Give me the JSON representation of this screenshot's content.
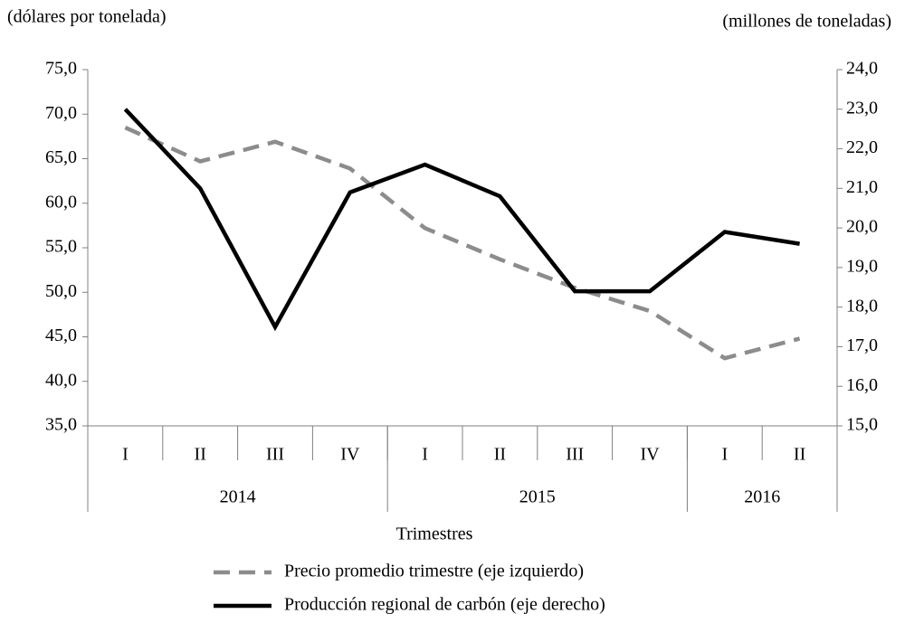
{
  "chart_data": {
    "type": "line",
    "y_axis_label": "(dólares por tonelada)",
    "y2_axis_label": "(millones  de toneladas)",
    "x_axis_label": "Trimestres",
    "categories": [
      "I",
      "II",
      "III",
      "IV",
      "I",
      "II",
      "III",
      "IV",
      "I",
      "II"
    ],
    "category_groups": [
      {
        "label": "2014",
        "count": 4
      },
      {
        "label": "2015",
        "count": 4
      },
      {
        "label": "2016",
        "count": 2
      }
    ],
    "series": [
      {
        "name": "Precio promedio trimestre (eje izquierdo)",
        "color": "#8c8c8c",
        "dashed": true,
        "axis": "y",
        "values": [
          68.5,
          64.7,
          66.9,
          63.9,
          57.2,
          53.7,
          50.5,
          47.9,
          42.6,
          44.8
        ]
      },
      {
        "name": "Producción regional de carbón (eje derecho)",
        "color": "#000000",
        "dashed": false,
        "axis": "y2",
        "values": [
          23.0,
          21.0,
          17.5,
          20.9,
          21.6,
          20.8,
          18.4,
          18.4,
          19.9,
          19.6
        ]
      }
    ],
    "ylim": [
      35,
      75
    ],
    "yticks": [
      {
        "value": 35,
        "label": "35,0"
      },
      {
        "value": 40,
        "label": "40,0"
      },
      {
        "value": 45,
        "label": "45,0"
      },
      {
        "value": 50,
        "label": "50,0"
      },
      {
        "value": 55,
        "label": "55,0"
      },
      {
        "value": 60,
        "label": "60,0"
      },
      {
        "value": 65,
        "label": "65,0"
      },
      {
        "value": 70,
        "label": "70,0"
      },
      {
        "value": 75,
        "label": "75,0"
      }
    ],
    "y2lim": [
      15,
      24
    ],
    "y2ticks": [
      {
        "value": 15,
        "label": "15,0"
      },
      {
        "value": 16,
        "label": "16,0"
      },
      {
        "value": 17,
        "label": "17,0"
      },
      {
        "value": 18,
        "label": "18,0"
      },
      {
        "value": 19,
        "label": "19,0"
      },
      {
        "value": 20,
        "label": "20,0"
      },
      {
        "value": 21,
        "label": "21,0"
      },
      {
        "value": 22,
        "label": "22,0"
      },
      {
        "value": 23,
        "label": "23,0"
      },
      {
        "value": 24,
        "label": "24,0"
      }
    ],
    "grid": false,
    "legend": "bottom"
  }
}
